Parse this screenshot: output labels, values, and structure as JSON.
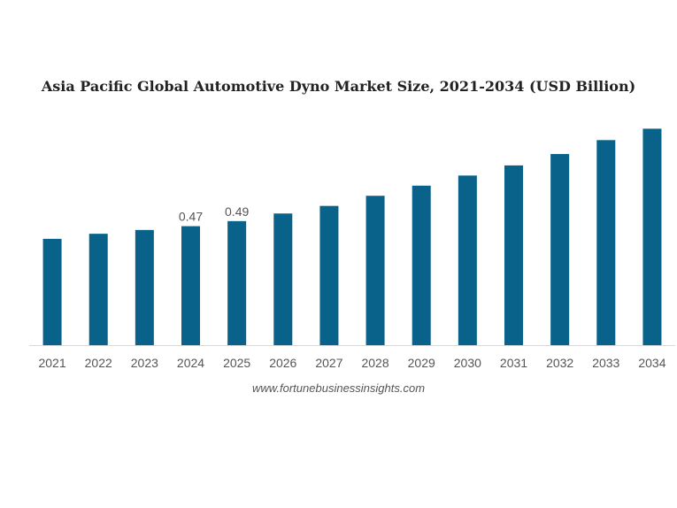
{
  "chart_data": {
    "type": "bar",
    "title": "Asia Pacific Global Automotive Dyno Market Size, 2021-2034 (USD Billion)",
    "xlabel": "",
    "ylabel": "",
    "categories": [
      "2021",
      "2022",
      "2023",
      "2024",
      "2025",
      "2026",
      "2027",
      "2028",
      "2029",
      "2030",
      "2031",
      "2032",
      "2033",
      "2034"
    ],
    "values": [
      0.42,
      0.44,
      0.455,
      0.47,
      0.49,
      0.52,
      0.55,
      0.59,
      0.63,
      0.67,
      0.71,
      0.755,
      0.81,
      0.855
    ],
    "data_labels": [
      "",
      "",
      "",
      "0.47",
      "0.49",
      "",
      "",
      "",
      "",
      "",
      "",
      "",
      "",
      ""
    ],
    "ylim": [
      0,
      0.86
    ],
    "grid": false,
    "bar_color": "#09628a",
    "axis_color": "#d9d9d9"
  },
  "source": "www.fortunebusinessinsights.com"
}
